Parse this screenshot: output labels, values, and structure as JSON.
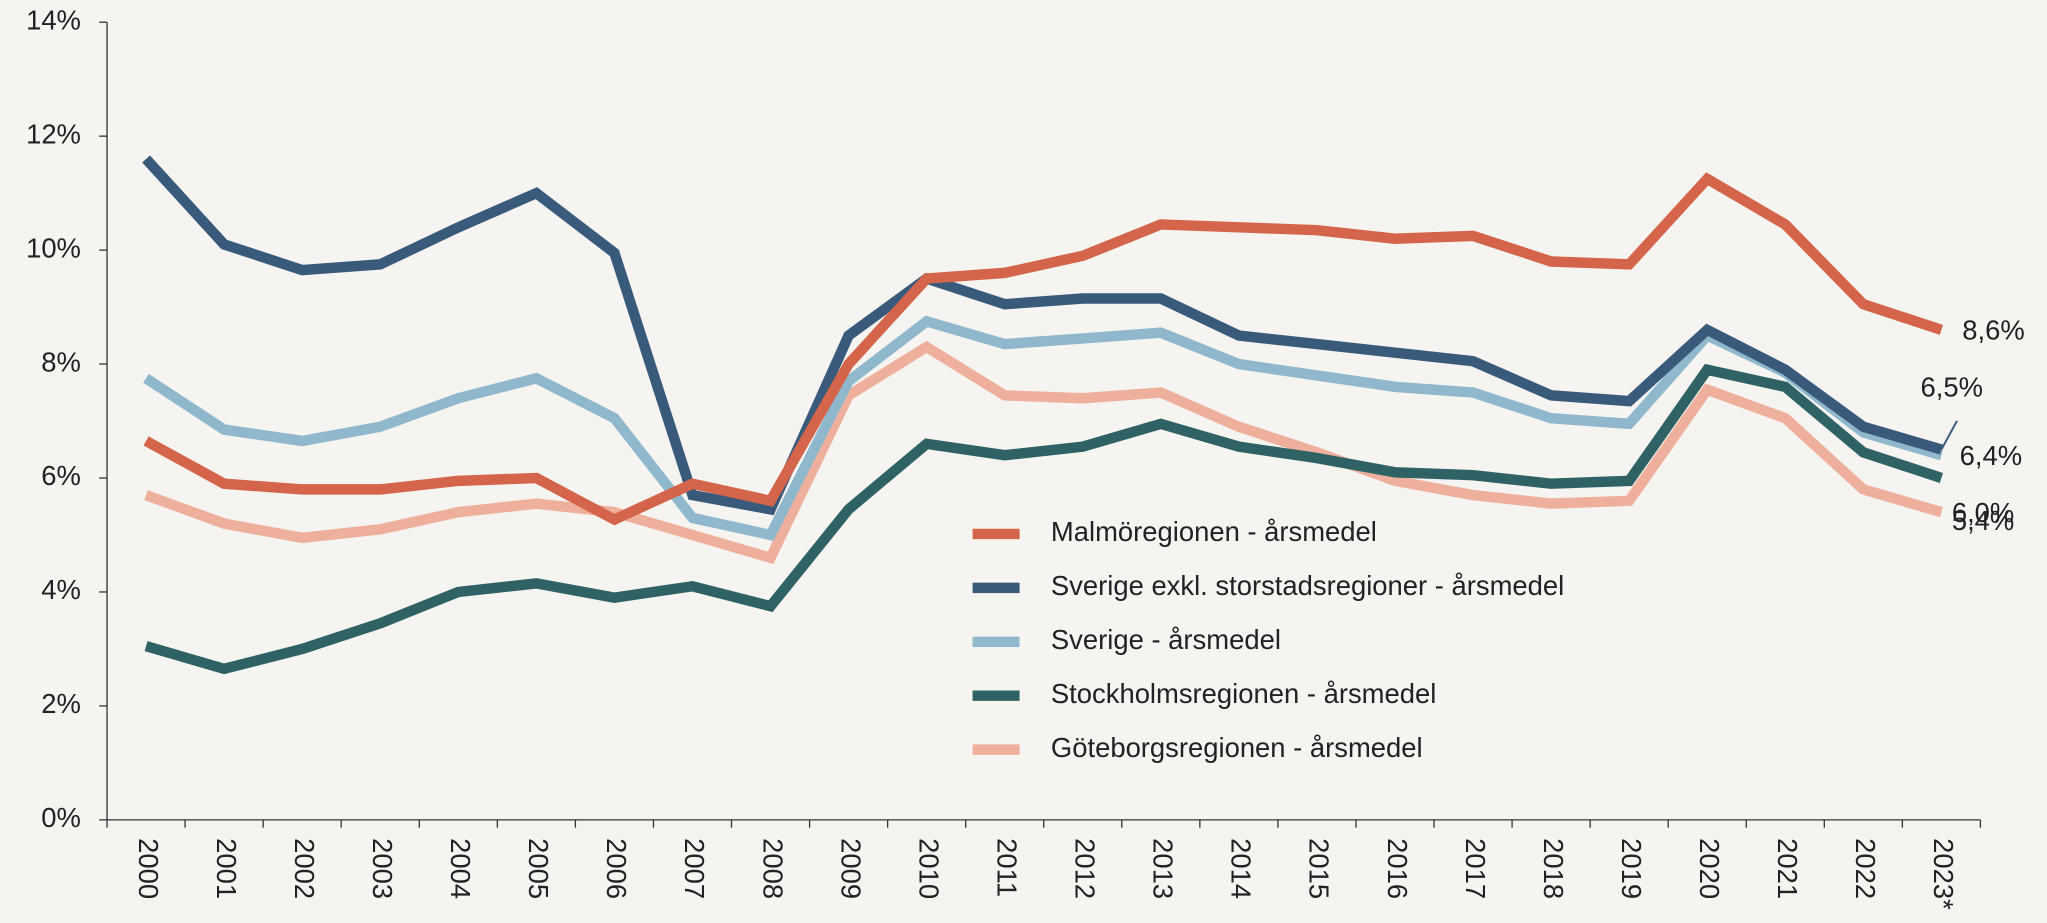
{
  "chart_data": {
    "type": "line",
    "categories": [
      "2000",
      "2001",
      "2002",
      "2003",
      "2004",
      "2005",
      "2006",
      "2007",
      "2008",
      "2009",
      "2010",
      "2011",
      "2012",
      "2013",
      "2014",
      "2015",
      "2016",
      "2017",
      "2018",
      "2019",
      "2020",
      "2021",
      "2022",
      "2023*"
    ],
    "ylim": [
      0,
      14
    ],
    "yticks": [
      {
        "value": 0,
        "label": "0%"
      },
      {
        "value": 2,
        "label": "2%"
      },
      {
        "value": 4,
        "label": "4%"
      },
      {
        "value": 6,
        "label": "6%"
      },
      {
        "value": 8,
        "label": "8%"
      },
      {
        "value": 10,
        "label": "10%"
      },
      {
        "value": 12,
        "label": "12%"
      },
      {
        "value": 14,
        "label": "14%"
      }
    ],
    "grid": false,
    "series": [
      {
        "name": "Malmöregionen - årsmedel",
        "color": "#d4654b",
        "values": [
          6.65,
          5.9,
          5.8,
          5.8,
          5.95,
          6.0,
          5.27,
          5.9,
          5.6,
          8.0,
          9.5,
          9.6,
          9.9,
          10.45,
          10.4,
          10.35,
          10.2,
          10.25,
          9.8,
          9.75,
          11.25,
          10.45,
          9.05,
          8.6
        ],
        "value_labels": [
          null,
          null,
          null,
          null,
          null,
          null,
          null,
          null,
          null,
          null,
          null,
          null,
          null,
          null,
          null,
          null,
          null,
          null,
          null,
          null,
          null,
          null,
          null,
          "8,6%"
        ]
      },
      {
        "name": "Sverige exkl. storstadsregioner - årsmedel",
        "color": "#3a5a7c",
        "values": [
          11.6,
          10.1,
          9.65,
          9.75,
          10.4,
          11.0,
          9.95,
          5.7,
          5.45,
          8.5,
          9.5,
          9.05,
          9.15,
          9.15,
          8.5,
          8.35,
          8.2,
          8.05,
          7.45,
          7.35,
          8.6,
          7.9,
          6.9,
          6.5
        ],
        "value_labels": [
          null,
          null,
          null,
          null,
          null,
          null,
          null,
          null,
          null,
          null,
          null,
          null,
          null,
          null,
          null,
          null,
          null,
          null,
          null,
          null,
          null,
          null,
          null,
          "6,5%"
        ]
      },
      {
        "name": "Sverige - årsmedel",
        "color": "#8fb8cc",
        "values": [
          7.75,
          6.85,
          6.65,
          6.9,
          7.4,
          7.75,
          7.05,
          5.3,
          5.0,
          7.7,
          8.75,
          8.35,
          8.45,
          8.55,
          8.0,
          7.8,
          7.6,
          7.5,
          7.05,
          6.95,
          8.5,
          7.85,
          6.8,
          6.4
        ],
        "value_labels": [
          null,
          null,
          null,
          null,
          null,
          null,
          null,
          null,
          null,
          null,
          null,
          null,
          null,
          null,
          null,
          null,
          null,
          null,
          null,
          null,
          null,
          null,
          null,
          "6,4%"
        ]
      },
      {
        "name": "Stockholmsregionen - årsmedel",
        "color": "#2e6264",
        "values": [
          3.05,
          2.65,
          3.0,
          3.45,
          4.0,
          4.15,
          3.9,
          4.1,
          3.75,
          5.45,
          6.6,
          6.4,
          6.55,
          6.95,
          6.55,
          6.35,
          6.1,
          6.05,
          5.9,
          5.95,
          7.9,
          7.6,
          6.45,
          6.0
        ],
        "value_labels": [
          null,
          null,
          null,
          null,
          null,
          null,
          null,
          null,
          null,
          null,
          null,
          null,
          null,
          null,
          null,
          null,
          null,
          null,
          null,
          null,
          null,
          null,
          null,
          "6,0%"
        ]
      },
      {
        "name": "Göteborgsregionen - årsmedel",
        "color": "#eeb09c",
        "values": [
          5.7,
          5.2,
          4.95,
          5.1,
          5.4,
          5.55,
          5.4,
          5.0,
          4.6,
          7.45,
          8.3,
          7.45,
          7.4,
          7.5,
          6.9,
          6.45,
          5.95,
          5.7,
          5.55,
          5.6,
          7.55,
          7.05,
          5.8,
          5.4
        ],
        "value_labels": [
          null,
          null,
          null,
          null,
          null,
          null,
          null,
          null,
          null,
          null,
          null,
          null,
          null,
          null,
          null,
          null,
          null,
          null,
          null,
          null,
          null,
          null,
          null,
          "5,4%"
        ]
      }
    ]
  }
}
